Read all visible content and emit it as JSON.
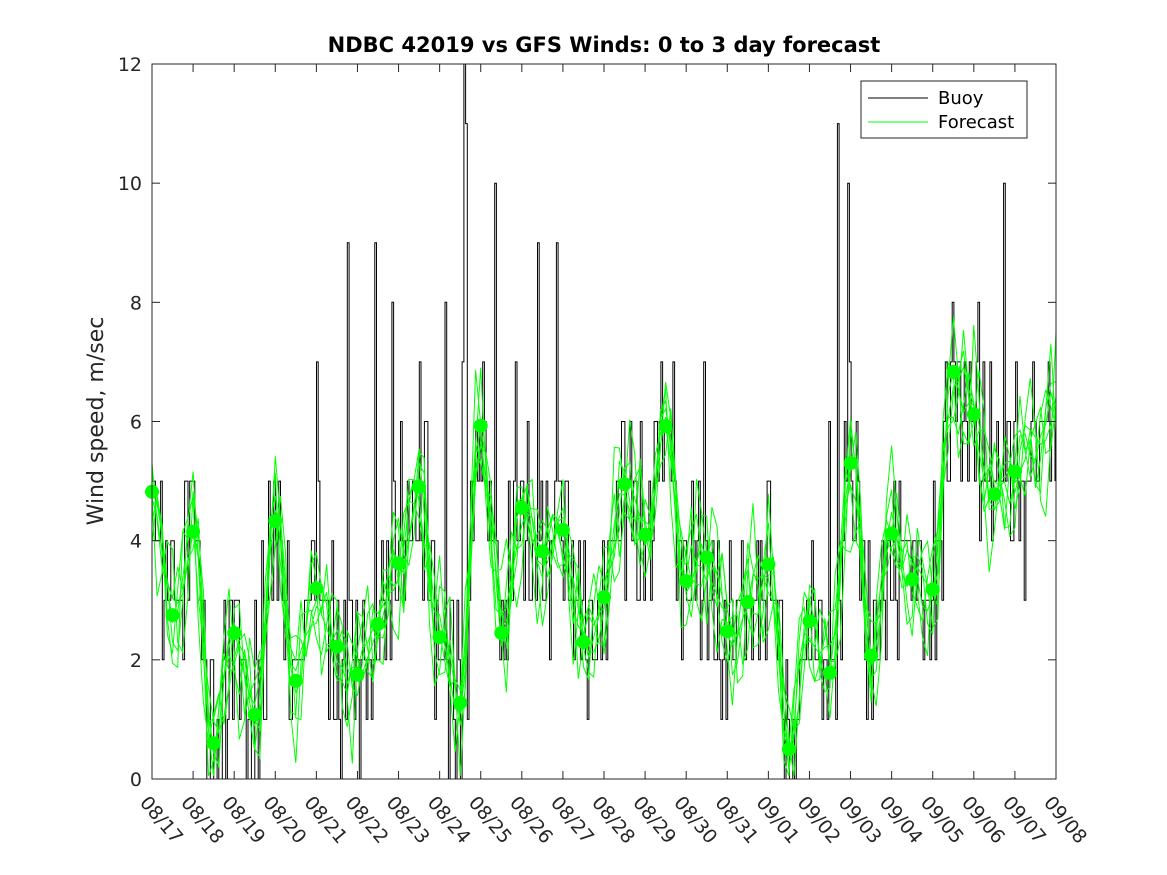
{
  "chart_data": {
    "type": "line",
    "title": "NDBC 42019 vs GFS Winds: 0 to 3 day forecast",
    "xlabel": "",
    "ylabel": "Wind speed, m/sec",
    "ylim": [
      0,
      12
    ],
    "yticks": [
      0,
      2,
      4,
      6,
      8,
      10,
      12
    ],
    "xlim": [
      0,
      22
    ],
    "xtick_labels": [
      "08/17",
      "08/18",
      "08/19",
      "08/20",
      "08/21",
      "08/22",
      "08/23",
      "08/24",
      "08/25",
      "08/26",
      "08/27",
      "08/28",
      "08/29",
      "08/30",
      "08/31",
      "09/01",
      "09/02",
      "09/03",
      "09/04",
      "09/05",
      "09/06",
      "09/07",
      "09/08"
    ],
    "legend": {
      "placement": "top-right",
      "entries": [
        "Buoy",
        "Forecast"
      ]
    },
    "colors": {
      "buoy": "#000000",
      "forecast": "#00ff00",
      "axes": "#262626"
    },
    "series": [
      {
        "name": "Buoy",
        "type": "step",
        "x_unit": "days since 08/17",
        "x_step": 0.0417,
        "values_note": "hourly buoy wind speed, m/sec (approximate reading)"
      },
      {
        "name": "Forecast",
        "type": "line",
        "ensemble_members": 7
      },
      {
        "name": "Forecast markers",
        "type": "scatter",
        "x": [
          0.0,
          0.5,
          1.0,
          1.5,
          2.0,
          2.5,
          3.0,
          3.5,
          4.0,
          4.5,
          5.0,
          5.5,
          6.0,
          6.5,
          7.0,
          7.5,
          8.0,
          8.5,
          9.0,
          9.5,
          10.0,
          10.5,
          11.0,
          11.5,
          12.0,
          12.5,
          13.0,
          13.5,
          14.0,
          14.5,
          15.0,
          15.5,
          16.0,
          16.5,
          17.0,
          17.5,
          18.0,
          18.5,
          19.0,
          19.5,
          20.0,
          20.5,
          21.0
        ],
        "y": [
          4.82,
          2.75,
          4.15,
          0.6,
          2.45,
          1.08,
          4.33,
          1.65,
          3.2,
          2.22,
          1.75,
          2.6,
          3.62,
          4.9,
          2.38,
          1.28,
          5.93,
          2.45,
          4.55,
          3.82,
          4.18,
          2.3,
          3.05,
          4.95,
          4.1,
          5.92,
          3.32,
          3.72,
          2.48,
          2.97,
          3.6,
          0.5,
          2.65,
          1.78,
          5.3,
          2.07,
          4.12,
          3.35,
          3.18,
          6.83,
          6.12,
          4.78,
          5.16
        ]
      }
    ]
  }
}
